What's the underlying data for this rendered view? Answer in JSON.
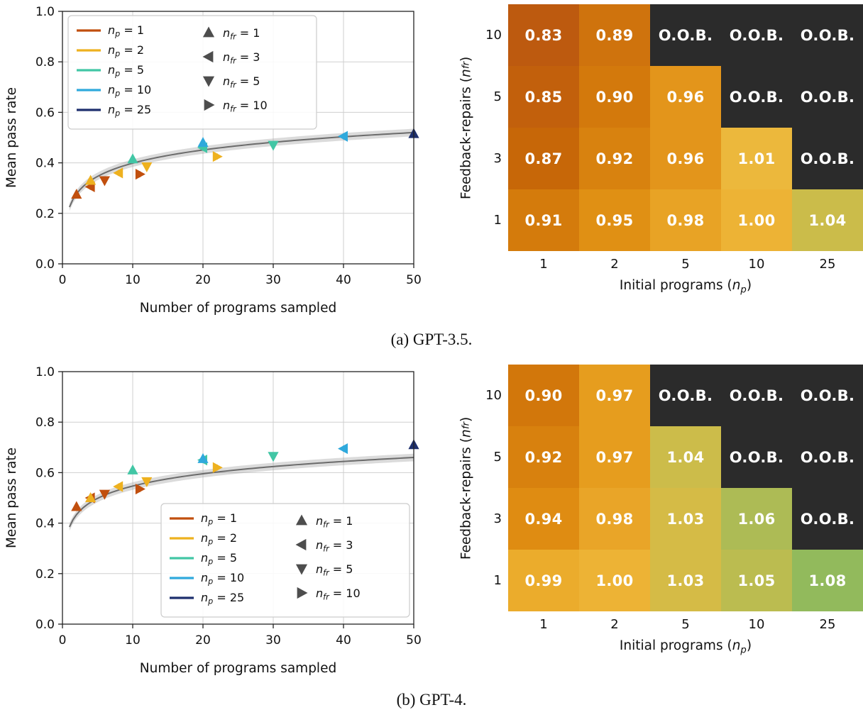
{
  "captions": {
    "a": "(a) GPT-3.5.",
    "b": "(b) GPT-4."
  },
  "chart_data": [
    {
      "id": "scatter-gpt35",
      "type": "scatter",
      "panel": "a",
      "xlabel": "Number of programs sampled",
      "ylabel": "Mean pass rate",
      "xlim": [
        0,
        50
      ],
      "ylim": [
        0.0,
        1.0
      ],
      "xticks": [
        0,
        10,
        20,
        30,
        40,
        50
      ],
      "yticks": [
        0.0,
        0.2,
        0.4,
        0.6,
        0.8,
        1.0
      ],
      "grid": true,
      "yerr": 0.012,
      "baseline": {
        "y_at_x1": 0.225,
        "y_at_x50": 0.52,
        "line_color": "#6b6b6b",
        "band_color": "#999999"
      },
      "legend": {
        "position": "upper-left",
        "np_labels": [
          "n_p = 1",
          "n_p = 2",
          "n_p = 5",
          "n_p = 10",
          "n_p = 25"
        ],
        "nfr_labels": [
          "n_fr = 1",
          "n_fr = 3",
          "n_fr = 5",
          "n_fr = 10"
        ],
        "nfr_markers": [
          "triangle-up",
          "triangle-left",
          "triangle-down",
          "triangle-right"
        ],
        "marker_color": "#4d4d4d"
      },
      "series": [
        {
          "np": 1,
          "color": "#c14f0e",
          "points": [
            {
              "x": 2,
              "y": 0.275,
              "nfr": 1
            },
            {
              "x": 4,
              "y": 0.305,
              "nfr": 3
            },
            {
              "x": 6,
              "y": 0.33,
              "nfr": 5
            },
            {
              "x": 11,
              "y": 0.355,
              "nfr": 10
            }
          ]
        },
        {
          "np": 2,
          "color": "#eeb11f",
          "points": [
            {
              "x": 4,
              "y": 0.33,
              "nfr": 1
            },
            {
              "x": 8,
              "y": 0.36,
              "nfr": 3
            },
            {
              "x": 12,
              "y": 0.385,
              "nfr": 5
            },
            {
              "x": 22,
              "y": 0.425,
              "nfr": 10
            }
          ]
        },
        {
          "np": 5,
          "color": "#42c6a5",
          "points": [
            {
              "x": 10,
              "y": 0.415,
              "nfr": 1
            },
            {
              "x": 20,
              "y": 0.46,
              "nfr": 3
            },
            {
              "x": 30,
              "y": 0.47,
              "nfr": 5
            }
          ]
        },
        {
          "np": 10,
          "color": "#2fa9dc",
          "points": [
            {
              "x": 20,
              "y": 0.48,
              "nfr": 1
            },
            {
              "x": 40,
              "y": 0.505,
              "nfr": 3
            }
          ]
        },
        {
          "np": 25,
          "color": "#1d2f6d",
          "points": [
            {
              "x": 50,
              "y": 0.515,
              "nfr": 1
            }
          ]
        }
      ]
    },
    {
      "id": "heatmap-gpt35",
      "type": "heatmap",
      "panel": "a",
      "xlabel": "Initial programs (n_p)",
      "ylabel": "Feedback-repairs (n_fr)",
      "x_categories": [
        "1",
        "2",
        "5",
        "10",
        "25"
      ],
      "y_categories": [
        "10",
        "5",
        "3",
        "1"
      ],
      "cells": [
        [
          "0.83",
          "0.89",
          "O.O.B.",
          "O.O.B.",
          "O.O.B."
        ],
        [
          "0.85",
          "0.90",
          "0.96",
          "O.O.B.",
          "O.O.B."
        ],
        [
          "0.87",
          "0.92",
          "0.96",
          "1.01",
          "O.O.B."
        ],
        [
          "0.91",
          "0.95",
          "0.98",
          "1.00",
          "1.04"
        ]
      ],
      "cell_colors": [
        [
          "#bd5a0f",
          "#cf730d",
          "#2b2b2b",
          "#2b2b2b",
          "#2b2b2b"
        ],
        [
          "#c2600c",
          "#d3790c",
          "#e3951b",
          "#2b2b2b",
          "#2b2b2b"
        ],
        [
          "#c76708",
          "#d8820f",
          "#e3951b",
          "#ecb83c",
          "#2b2b2b"
        ],
        [
          "#d47b0c",
          "#e09014",
          "#e8a325",
          "#edb335",
          "#cbbc4a"
        ]
      ],
      "text_color": "#ffffff"
    },
    {
      "id": "scatter-gpt4",
      "type": "scatter",
      "panel": "b",
      "xlabel": "Number of programs sampled",
      "ylabel": "Mean pass rate",
      "xlim": [
        0,
        50
      ],
      "ylim": [
        0.0,
        1.0
      ],
      "xticks": [
        0,
        10,
        20,
        30,
        40,
        50
      ],
      "yticks": [
        0.0,
        0.2,
        0.4,
        0.6,
        0.8,
        1.0
      ],
      "grid": true,
      "yerr": 0.012,
      "baseline": {
        "y_at_x1": 0.385,
        "y_at_x50": 0.66,
        "line_color": "#6b6b6b",
        "band_color": "#999999"
      },
      "legend": {
        "position": "lower-right",
        "np_labels": [
          "n_p = 1",
          "n_p = 2",
          "n_p = 5",
          "n_p = 10",
          "n_p = 25"
        ],
        "nfr_labels": [
          "n_fr = 1",
          "n_fr = 3",
          "n_fr = 5",
          "n_fr = 10"
        ],
        "nfr_markers": [
          "triangle-up",
          "triangle-left",
          "triangle-down",
          "triangle-right"
        ],
        "marker_color": "#4d4d4d"
      },
      "series": [
        {
          "np": 1,
          "color": "#c14f0e",
          "points": [
            {
              "x": 2,
              "y": 0.465,
              "nfr": 1
            },
            {
              "x": 4,
              "y": 0.5,
              "nfr": 3
            },
            {
              "x": 6,
              "y": 0.515,
              "nfr": 5
            },
            {
              "x": 11,
              "y": 0.535,
              "nfr": 10
            }
          ]
        },
        {
          "np": 2,
          "color": "#eeb11f",
          "points": [
            {
              "x": 4,
              "y": 0.5,
              "nfr": 1
            },
            {
              "x": 8,
              "y": 0.545,
              "nfr": 3
            },
            {
              "x": 12,
              "y": 0.565,
              "nfr": 5
            },
            {
              "x": 22,
              "y": 0.62,
              "nfr": 10
            }
          ]
        },
        {
          "np": 5,
          "color": "#42c6a5",
          "points": [
            {
              "x": 10,
              "y": 0.61,
              "nfr": 1
            },
            {
              "x": 20,
              "y": 0.65,
              "nfr": 3
            },
            {
              "x": 30,
              "y": 0.665,
              "nfr": 5
            }
          ]
        },
        {
          "np": 10,
          "color": "#2fa9dc",
          "points": [
            {
              "x": 20,
              "y": 0.655,
              "nfr": 1
            },
            {
              "x": 40,
              "y": 0.695,
              "nfr": 3
            }
          ]
        },
        {
          "np": 25,
          "color": "#1d2f6d",
          "points": [
            {
              "x": 50,
              "y": 0.71,
              "nfr": 1
            }
          ]
        }
      ]
    },
    {
      "id": "heatmap-gpt4",
      "type": "heatmap",
      "panel": "b",
      "xlabel": "Initial programs (n_p)",
      "ylabel": "Feedback-repairs (n_fr)",
      "x_categories": [
        "1",
        "2",
        "5",
        "10",
        "25"
      ],
      "y_categories": [
        "10",
        "5",
        "3",
        "1"
      ],
      "cells": [
        [
          "0.90",
          "0.97",
          "O.O.B.",
          "O.O.B.",
          "O.O.B."
        ],
        [
          "0.92",
          "0.97",
          "1.04",
          "O.O.B.",
          "O.O.B."
        ],
        [
          "0.94",
          "0.98",
          "1.03",
          "1.06",
          "O.O.B."
        ],
        [
          "0.99",
          "1.00",
          "1.03",
          "1.05",
          "1.08"
        ]
      ],
      "cell_colors": [
        [
          "#d2770b",
          "#e69d1e",
          "#2b2b2b",
          "#2b2b2b",
          "#2b2b2b"
        ],
        [
          "#d8810e",
          "#e69d1e",
          "#ccbc4a",
          "#2b2b2b",
          "#2b2b2b"
        ],
        [
          "#df8c12",
          "#e9a528",
          "#d5bb46",
          "#adbb55",
          "#2b2b2b"
        ],
        [
          "#ebac2c",
          "#edb335",
          "#d5bb46",
          "#bbbc50",
          "#92ba5c"
        ]
      ],
      "text_color": "#ffffff"
    }
  ]
}
